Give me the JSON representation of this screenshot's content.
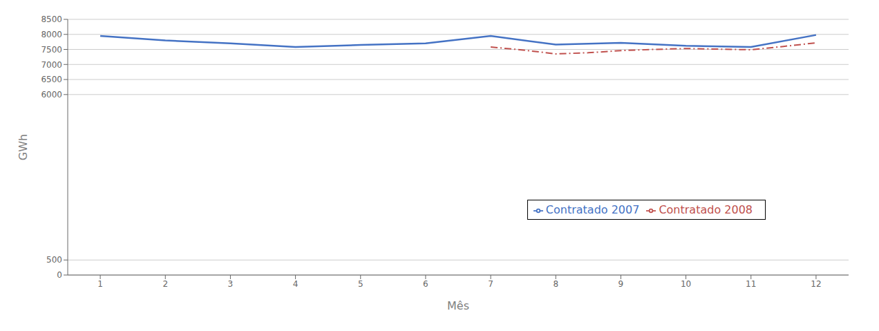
{
  "chart_data": {
    "type": "line",
    "xlabel": "Mês",
    "ylabel": "GWh",
    "series": [
      {
        "name": "Contratado 2007",
        "color": "#4472C4",
        "line_style": "solid",
        "x": [
          1,
          2,
          3,
          4,
          5,
          6,
          7,
          8,
          9,
          10,
          11,
          12
        ],
        "values": [
          7950,
          7800,
          7700,
          7580,
          7650,
          7700,
          7950,
          7660,
          7720,
          7620,
          7580,
          7980
        ]
      },
      {
        "name": "Contratado 2008",
        "color": "#C0504D",
        "line_style": "dashdot",
        "x": [
          7,
          7.5,
          8,
          8.5,
          9,
          9.5,
          10,
          10.5,
          11,
          11.5,
          12
        ],
        "values": [
          7580,
          7480,
          7350,
          7390,
          7460,
          7500,
          7530,
          7510,
          7490,
          7600,
          7720
        ]
      }
    ],
    "xlim": [
      0.5,
      12.5
    ],
    "xticks": [
      1,
      2,
      3,
      4,
      5,
      6,
      7,
      8,
      9,
      10,
      11,
      12
    ],
    "ylim": [
      0,
      8500
    ],
    "yticks": [
      0,
      500,
      6000,
      6500,
      7000,
      7500,
      8000,
      8500
    ],
    "grid": "y",
    "legend": "lower right"
  }
}
